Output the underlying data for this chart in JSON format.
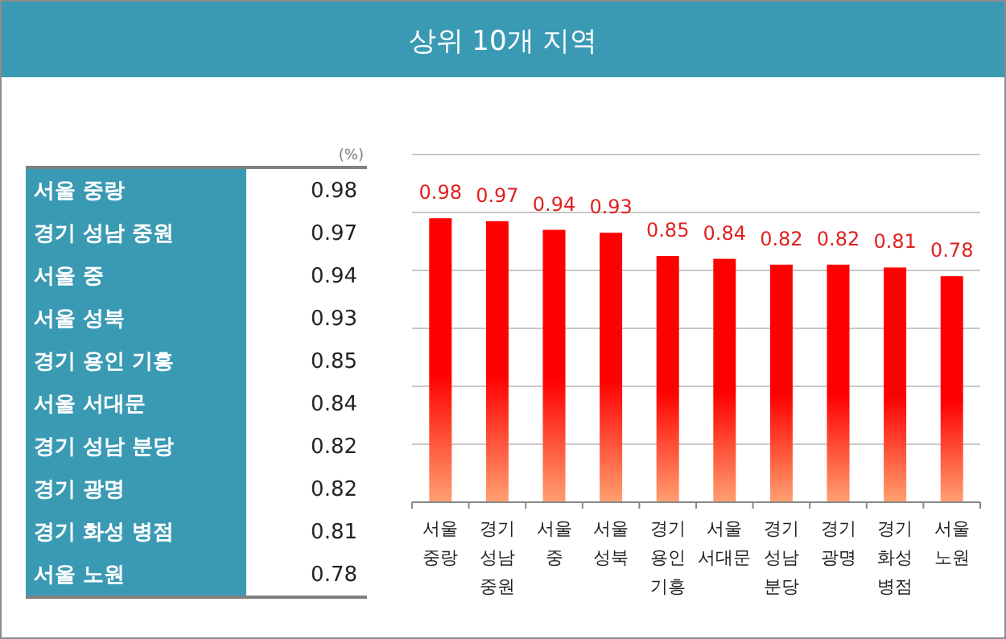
{
  "chart_data": [
    {
      "type": "other",
      "categories": [
        "서울 중랑",
        "경기 성남 중원",
        "서울 중",
        "서울 성북",
        "경기 용인 기흥",
        "서울 서대문",
        "경기 성남 분당",
        "경기 광명",
        "경기 화성 병점",
        "서울 노원"
      ],
      "values": [
        0.98,
        0.97,
        0.94,
        0.93,
        0.85,
        0.84,
        0.82,
        0.82,
        0.81,
        0.78
      ],
      "data_labels": true,
      "annotations": [
        "(%)"
      ]
    },
    {
      "type": "bar",
      "title": "상위 10개 지역",
      "categories": [
        "서울 중랑",
        "경기 성남 중원",
        "서울 중",
        "서울 성북",
        "경기 용인 기흥",
        "서울 서대문",
        "경기 성남 분당",
        "경기 광명",
        "경기 화성 병점",
        "서울 노원"
      ],
      "values": [
        0.98,
        0.97,
        0.94,
        0.93,
        0.85,
        0.84,
        0.82,
        0.82,
        0.81,
        0.78
      ],
      "color": "#ff0000",
      "ylim": [
        0,
        1.2
      ],
      "yticks": [
        {
          "value": 0,
          "label": null
        },
        {
          "value": 0.2,
          "label": null
        },
        {
          "value": 0.4,
          "label": null
        },
        {
          "value": 0.6,
          "label": null
        },
        {
          "value": 0.8,
          "label": null
        },
        {
          "value": 1.0,
          "label": null
        },
        {
          "value": 1.2,
          "label": null
        }
      ],
      "grid": "y",
      "tick_labels": "x",
      "data_labels": true
    }
  ]
}
